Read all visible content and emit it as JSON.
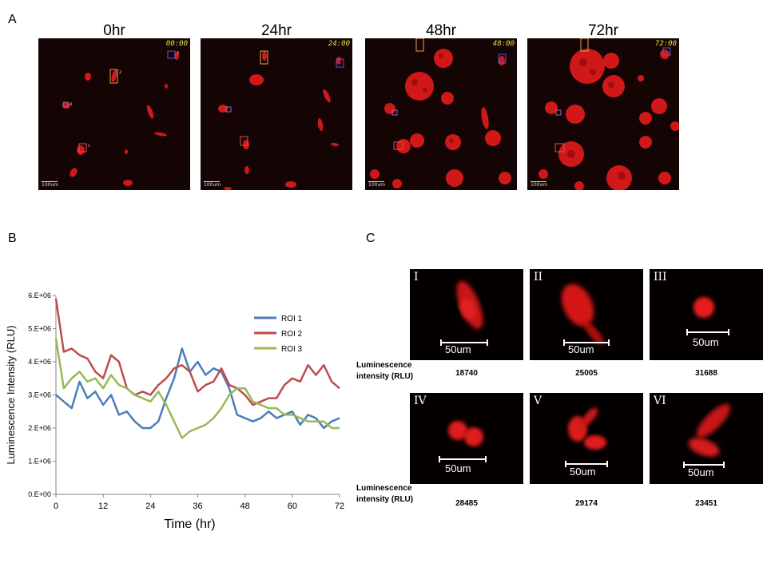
{
  "panel_a": {
    "letter": "A",
    "frames": [
      {
        "label": "0hr",
        "stamp": "00:00",
        "scale": "100um"
      },
      {
        "label": "24hr",
        "stamp": "24:00",
        "scale": "100um"
      },
      {
        "label": "48hr",
        "stamp": "48:00",
        "scale": "100um"
      },
      {
        "label": "72hr",
        "stamp": "72:00",
        "scale": "100um"
      }
    ],
    "roi_numbers": [
      "1",
      "2",
      "3",
      "4"
    ]
  },
  "panel_b": {
    "letter": "B",
    "chart_data": {
      "type": "line",
      "title": "",
      "xlabel": "Time (hr)",
      "ylabel": "Luminescence Intensity (RLU)",
      "xlim": [
        0,
        72
      ],
      "ylim": [
        0,
        6000000
      ],
      "x_ticks": [
        0,
        12,
        24,
        36,
        48,
        60,
        72
      ],
      "y_ticks": [
        0,
        1000000,
        2000000,
        3000000,
        4000000,
        5000000,
        6000000
      ],
      "y_tick_labels": [
        "0.E+00",
        "1.E+06",
        "2.E+06",
        "3.E+06",
        "4.E+06",
        "5.E+06",
        "6.E+06"
      ],
      "legend_position": "top-right",
      "x": [
        0,
        2,
        4,
        6,
        8,
        10,
        12,
        14,
        16,
        18,
        20,
        22,
        24,
        26,
        28,
        30,
        32,
        34,
        36,
        38,
        40,
        42,
        44,
        46,
        48,
        50,
        52,
        54,
        56,
        58,
        60,
        62,
        64,
        66,
        68,
        70,
        72
      ],
      "series": [
        {
          "name": "ROI 1",
          "color": "#4a7ebb",
          "values": [
            3000000,
            2800000,
            2600000,
            3400000,
            2900000,
            3100000,
            2700000,
            3000000,
            2400000,
            2500000,
            2200000,
            2000000,
            2000000,
            2200000,
            2900000,
            3500000,
            4400000,
            3700000,
            4000000,
            3600000,
            3800000,
            3700000,
            3200000,
            2400000,
            2300000,
            2200000,
            2300000,
            2500000,
            2300000,
            2400000,
            2500000,
            2100000,
            2400000,
            2300000,
            2000000,
            2200000,
            2300000
          ]
        },
        {
          "name": "ROI 2",
          "color": "#be4b48",
          "values": [
            5900000,
            4300000,
            4400000,
            4200000,
            4100000,
            3700000,
            3500000,
            4200000,
            4000000,
            3200000,
            3000000,
            3100000,
            3000000,
            3300000,
            3500000,
            3800000,
            3900000,
            3700000,
            3100000,
            3300000,
            3400000,
            3800000,
            3300000,
            3200000,
            3000000,
            2700000,
            2800000,
            2900000,
            2900000,
            3300000,
            3500000,
            3400000,
            3900000,
            3600000,
            3900000,
            3400000,
            3200000
          ]
        },
        {
          "name": "ROI 3",
          "color": "#98b954",
          "values": [
            4700000,
            3200000,
            3500000,
            3700000,
            3400000,
            3500000,
            3200000,
            3600000,
            3300000,
            3200000,
            3000000,
            2900000,
            2800000,
            3100000,
            2700000,
            2200000,
            1700000,
            1900000,
            2000000,
            2100000,
            2300000,
            2600000,
            3000000,
            3200000,
            3200000,
            2800000,
            2700000,
            2600000,
            2600000,
            2400000,
            2400000,
            2300000,
            2200000,
            2200000,
            2200000,
            2000000,
            2000000
          ]
        }
      ]
    }
  },
  "panel_c": {
    "letter": "C",
    "lum_label_line1": "Luminescence",
    "lum_label_line2": "intensity (RLU)",
    "cells": [
      {
        "roman": "I",
        "scale": "50um",
        "value": "18740"
      },
      {
        "roman": "II",
        "scale": "50um",
        "value": "25005"
      },
      {
        "roman": "III",
        "scale": "50um",
        "value": "31688"
      },
      {
        "roman": "IV",
        "scale": "50um",
        "value": "28485"
      },
      {
        "roman": "V",
        "scale": "50um",
        "value": "29174"
      },
      {
        "roman": "VI",
        "scale": "50um",
        "value": "23451"
      }
    ]
  }
}
